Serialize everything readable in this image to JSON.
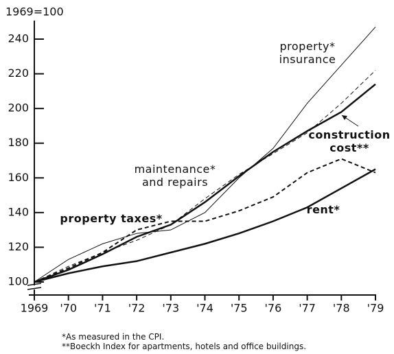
{
  "chart_data": {
    "type": "line",
    "y_label": "1969=100",
    "categories": [
      "1969",
      "'70",
      "'71",
      "'72",
      "'73",
      "'74",
      "'75",
      "'76",
      "'77",
      "'78",
      "'79"
    ],
    "series": [
      {
        "name": "property* insurance",
        "color": "#111111",
        "width": 1,
        "dash": false,
        "values": [
          100,
          113,
          122,
          128,
          130,
          140,
          160,
          177,
          203,
          225,
          247
        ]
      },
      {
        "name": "construction cost**",
        "color": "#111111",
        "width": 2.5,
        "dash": false,
        "values": [
          100,
          107,
          116,
          126,
          133,
          146,
          161,
          175,
          187,
          198,
          214
        ]
      },
      {
        "name": "maintenance* and repairs",
        "color": "#111111",
        "width": 1,
        "dash": true,
        "values": [
          100,
          109,
          117,
          124,
          133,
          148,
          162,
          174,
          186,
          203,
          222
        ]
      },
      {
        "name": "property taxes*",
        "color": "#111111",
        "width": 2,
        "dash": true,
        "values": [
          100,
          108,
          117,
          130,
          135,
          135,
          141,
          149,
          163,
          171,
          163
        ]
      },
      {
        "name": "rent*",
        "color": "#111111",
        "width": 2.5,
        "dash": false,
        "values": [
          100,
          105,
          109,
          112,
          117,
          122,
          128,
          135,
          143,
          154,
          165
        ]
      }
    ],
    "ylim": [
      100,
      240
    ],
    "yticks": [
      100,
      120,
      140,
      160,
      180,
      200,
      220,
      240
    ],
    "notes": [
      "*As measured in the CPI.",
      "**Boeckh Index for apartments, hotels and office buildings."
    ]
  }
}
